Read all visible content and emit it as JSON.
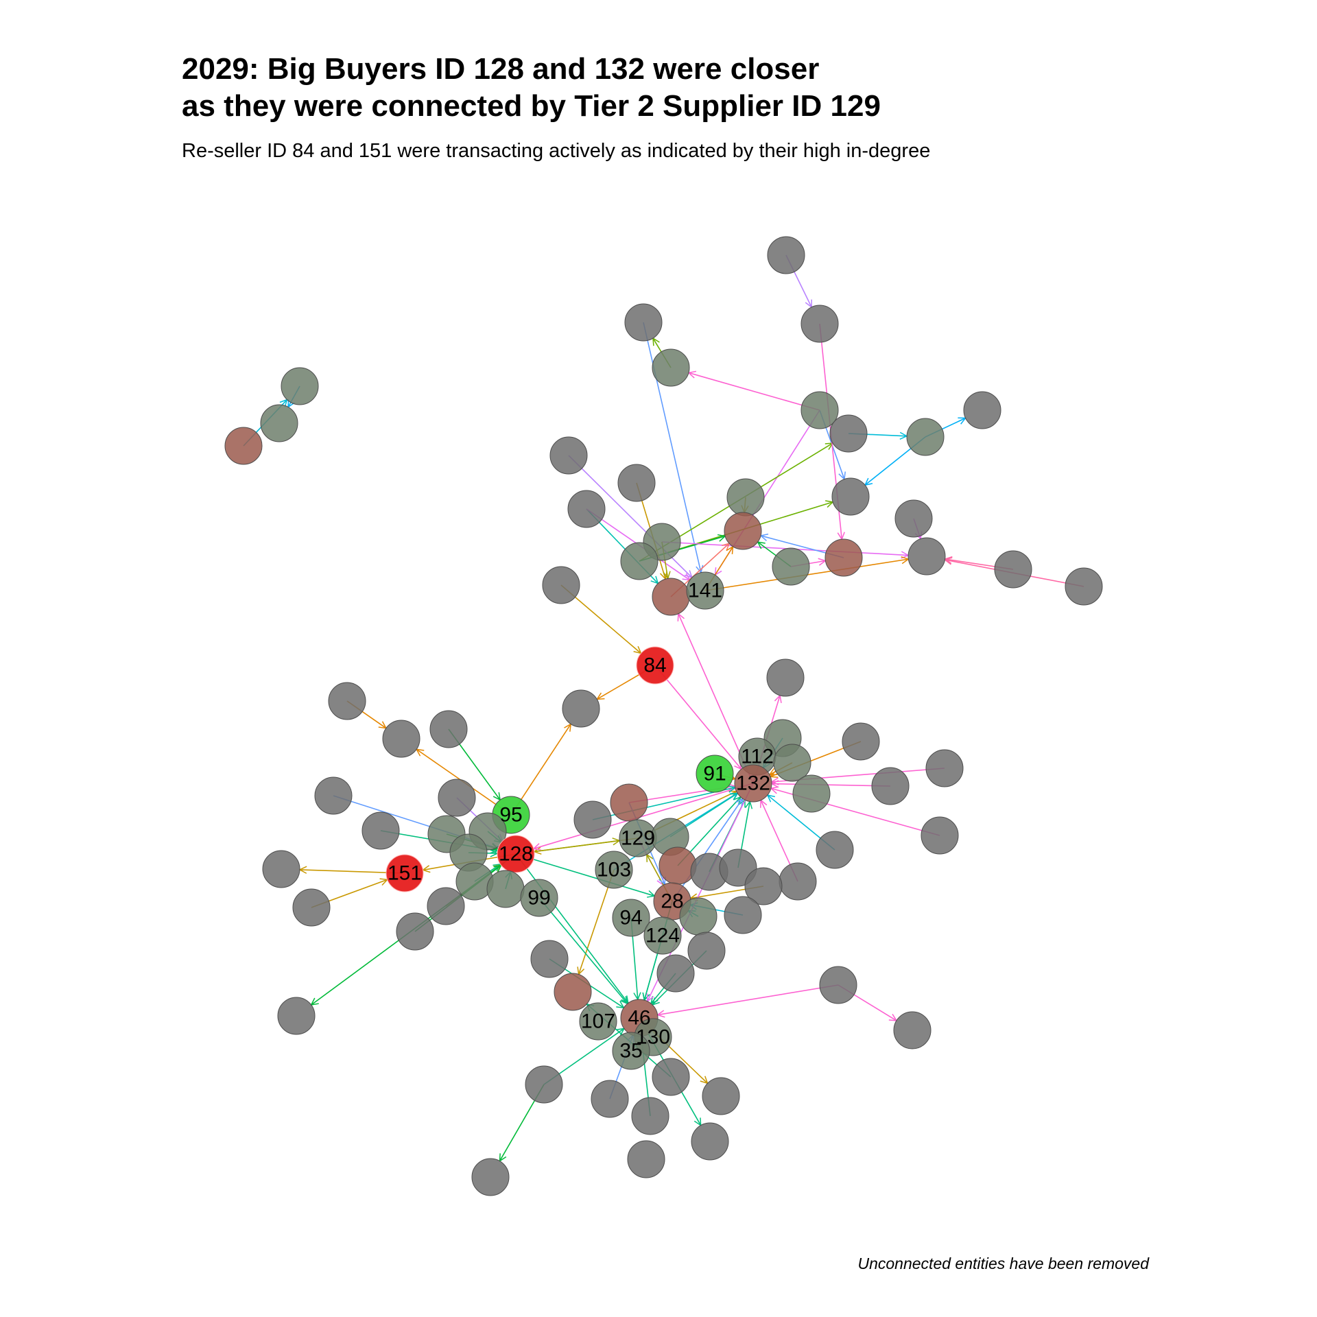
{
  "title": "2029: Big Buyers ID 128 and 132 were closer\nas they were connected by Tier 2 Supplier ID 129",
  "subtitle": "Re-seller ID 84 and 151 were transacting actively as indicated by their high in-degree",
  "caption": "Unconnected entities have been removed",
  "colors": {
    "node_default": "#6e6e6e",
    "node_green": "#22cc22",
    "node_red": "#e01010",
    "node_stroke": "#555555",
    "edge_palette": [
      "#f8766d",
      "#e58700",
      "#c99800",
      "#a3a500",
      "#6bb100",
      "#00ba38",
      "#00bf7d",
      "#00c0af",
      "#00bcd8",
      "#00b0f6",
      "#619cff",
      "#b983ff",
      "#e76bf3",
      "#fd61d1",
      "#ff67a4"
    ]
  },
  "labels": {
    "n141": "141",
    "n84": "84",
    "n112": "112",
    "n91": "91",
    "n132": "132",
    "n95": "95",
    "n129": "129",
    "n128": "128",
    "n151": "151",
    "n103": "103",
    "n99": "99",
    "n28": "28",
    "n94": "94",
    "n124": "124",
    "n46": "46",
    "n107": "107",
    "n130": "130",
    "n35": "35"
  }
}
